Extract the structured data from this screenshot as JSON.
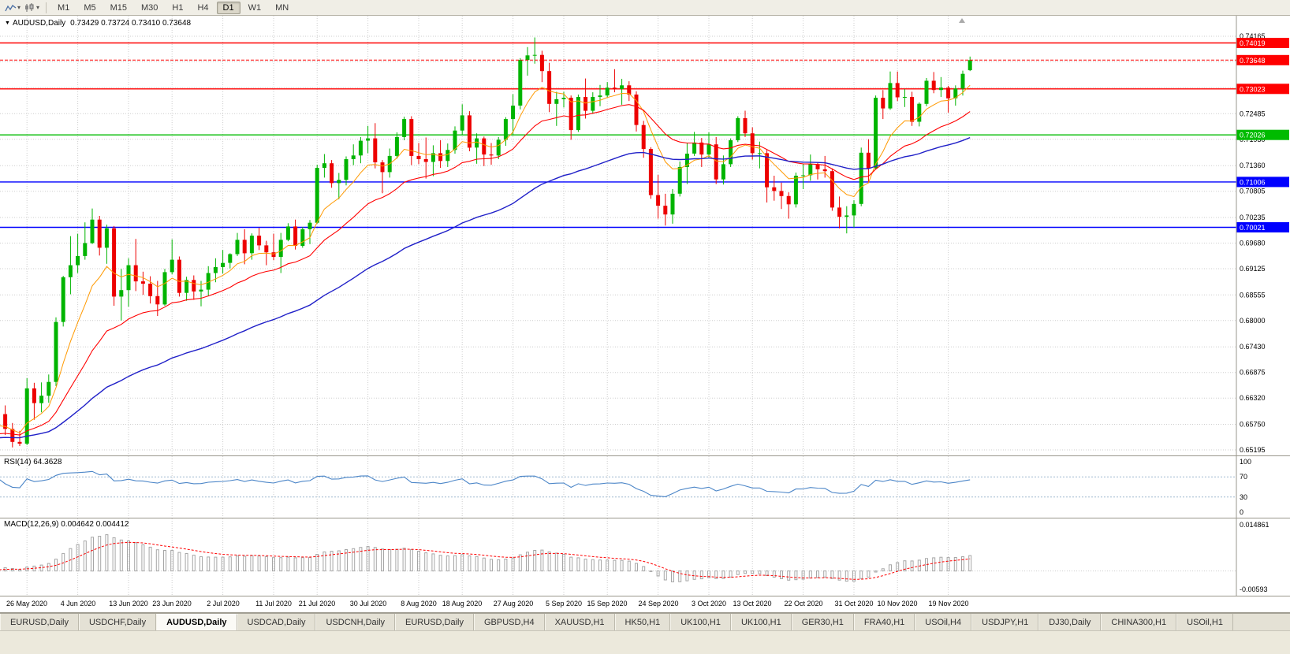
{
  "toolbar": {
    "timeframes": [
      {
        "label": "M1"
      },
      {
        "label": "M5"
      },
      {
        "label": "M15"
      },
      {
        "label": "M30"
      },
      {
        "label": "H1"
      },
      {
        "label": "H4"
      },
      {
        "label": "D1",
        "active": true
      },
      {
        "label": "W1"
      },
      {
        "label": "MN"
      }
    ]
  },
  "header": {
    "symbol_text": "AUDUSD,Daily",
    "ohlc_text": "0.73429 0.73724 0.73410 0.73648"
  },
  "chart_data": {
    "type": "candlestick",
    "symbol": "AUDUSD",
    "timeframe": "Daily",
    "ohlc_display": {
      "open": "0.73429",
      "high": "0.73724",
      "low": "0.73410",
      "close": "0.73648"
    },
    "up_color": "#00B400",
    "down_color": "#ED0000",
    "y_axis": {
      "max": 0.74165,
      "min": 0.65195,
      "grid": [
        {
          "p": 0.74165,
          "label": "0.74165"
        },
        {
          "p": 0.7361
        },
        {
          "p": 0.7305
        },
        {
          "p": 0.72485,
          "label": "0.72485"
        },
        {
          "p": 0.7193,
          "label": "0.71930"
        },
        {
          "p": 0.7136,
          "label": "0.71360"
        },
        {
          "p": 0.70805,
          "label": "0.70805"
        },
        {
          "p": 0.70235,
          "label": "0.70235"
        },
        {
          "p": 0.6968,
          "label": "0.69680"
        },
        {
          "p": 0.69125,
          "label": "0.69125"
        },
        {
          "p": 0.68555,
          "label": "0.68555"
        },
        {
          "p": 0.68,
          "label": "0.68000"
        },
        {
          "p": 0.6743,
          "label": "0.67430"
        },
        {
          "p": 0.66875,
          "label": "0.66875"
        },
        {
          "p": 0.6632,
          "label": "0.66320"
        },
        {
          "p": 0.6575,
          "label": "0.65750"
        },
        {
          "p": 0.65195,
          "label": "0.65195"
        }
      ]
    },
    "x_ticks": [
      {
        "label": "26 May 2020",
        "index": 6
      },
      {
        "label": "4 Jun 2020",
        "index": 13
      },
      {
        "label": "13 Jun 2020",
        "index": 20
      },
      {
        "label": "23 Jun 2020",
        "index": 26
      },
      {
        "label": "2 Jul 2020",
        "index": 33
      },
      {
        "label": "11 Jul 2020",
        "index": 40
      },
      {
        "label": "21 Jul 2020",
        "index": 46
      },
      {
        "label": "30 Jul 2020",
        "index": 53
      },
      {
        "label": "8 Aug 2020",
        "index": 60
      },
      {
        "label": "18 Aug 2020",
        "index": 66
      },
      {
        "label": "27 Aug 2020",
        "index": 73
      },
      {
        "label": "5 Sep 2020",
        "index": 80
      },
      {
        "label": "15 Sep 2020",
        "index": 86
      },
      {
        "label": "24 Sep 2020",
        "index": 93
      },
      {
        "label": "3 Oct 2020",
        "index": 100
      },
      {
        "label": "13 Oct 2020",
        "index": 106
      },
      {
        "label": "22 Oct 2020",
        "index": 113
      },
      {
        "label": "31 Oct 2020",
        "index": 120
      },
      {
        "label": "10 Nov 2020",
        "index": 126
      },
      {
        "label": "19 Nov 2020",
        "index": 133
      }
    ],
    "hlines": [
      {
        "price": 0.74019,
        "label": "0.74019",
        "color": "#FF0000"
      },
      {
        "price": 0.73023,
        "label": "0.73023",
        "color": "#FF0000"
      },
      {
        "price": 0.72026,
        "label": "0.72026",
        "color": "#00BB00"
      },
      {
        "price": 0.71006,
        "label": "0.71006",
        "color": "#0000FF"
      },
      {
        "price": 0.70021,
        "label": "0.70021",
        "color": "#0000FF"
      }
    ],
    "current_price": {
      "value": 0.73648,
      "label": "0.73648",
      "color": "#FF0000"
    },
    "moving_averages": [
      {
        "period": 8,
        "color": "#FF9900",
        "width": 1
      },
      {
        "period": 21,
        "color": "#FF0000",
        "width": 1.1
      },
      {
        "period": 55,
        "color": "#2020C8",
        "width": 1.4
      }
    ],
    "candles": [
      [
        0.653,
        0.6548,
        0.6524,
        0.654
      ],
      [
        0.654,
        0.6665,
        0.6532,
        0.6652
      ],
      [
        0.6652,
        0.667,
        0.6583,
        0.6597
      ],
      [
        0.6597,
        0.6616,
        0.6552,
        0.6565
      ],
      [
        0.6565,
        0.6578,
        0.6525,
        0.6537
      ],
      [
        0.6537,
        0.6561,
        0.6528,
        0.6533
      ],
      [
        0.6533,
        0.6675,
        0.653,
        0.6653
      ],
      [
        0.6653,
        0.6665,
        0.6585,
        0.6621
      ],
      [
        0.6621,
        0.6666,
        0.6601,
        0.6637
      ],
      [
        0.6637,
        0.6683,
        0.6622,
        0.6667
      ],
      [
        0.6667,
        0.6807,
        0.6658,
        0.6797
      ],
      [
        0.6797,
        0.6897,
        0.6787,
        0.6894
      ],
      [
        0.6894,
        0.6983,
        0.6857,
        0.692
      ],
      [
        0.692,
        0.6988,
        0.6903,
        0.694
      ],
      [
        0.694,
        0.7013,
        0.6932,
        0.6968
      ],
      [
        0.6968,
        0.7043,
        0.6966,
        0.7019
      ],
      [
        0.7019,
        0.7027,
        0.6941,
        0.6958
      ],
      [
        0.6958,
        0.7008,
        0.6923,
        0.7
      ],
      [
        0.7,
        0.7005,
        0.6832,
        0.6852
      ],
      [
        0.6852,
        0.6912,
        0.68,
        0.6866
      ],
      [
        0.6866,
        0.6935,
        0.683,
        0.692
      ],
      [
        0.692,
        0.6977,
        0.6864,
        0.6885
      ],
      [
        0.6885,
        0.6906,
        0.6856,
        0.688
      ],
      [
        0.688,
        0.6896,
        0.6837,
        0.6853
      ],
      [
        0.6853,
        0.6886,
        0.681,
        0.6835
      ],
      [
        0.6835,
        0.6912,
        0.6832,
        0.6905
      ],
      [
        0.6905,
        0.6976,
        0.69,
        0.6932
      ],
      [
        0.6932,
        0.6939,
        0.6852,
        0.686
      ],
      [
        0.686,
        0.6895,
        0.6843,
        0.6888
      ],
      [
        0.6888,
        0.6898,
        0.6845,
        0.6863
      ],
      [
        0.6863,
        0.6886,
        0.6831,
        0.6867
      ],
      [
        0.6867,
        0.6918,
        0.6853,
        0.6903
      ],
      [
        0.6903,
        0.6935,
        0.6883,
        0.6916
      ],
      [
        0.6916,
        0.6953,
        0.6902,
        0.6925
      ],
      [
        0.6925,
        0.6946,
        0.6913,
        0.6944
      ],
      [
        0.6944,
        0.699,
        0.694,
        0.6975
      ],
      [
        0.6975,
        0.6998,
        0.6922,
        0.6946
      ],
      [
        0.6946,
        0.6989,
        0.6932,
        0.6984
      ],
      [
        0.6984,
        0.7001,
        0.6953,
        0.6963
      ],
      [
        0.6963,
        0.6973,
        0.692,
        0.6948
      ],
      [
        0.6948,
        0.6988,
        0.6931,
        0.6938
      ],
      [
        0.6938,
        0.699,
        0.6903,
        0.6975
      ],
      [
        0.6975,
        0.7011,
        0.6972,
        0.7004
      ],
      [
        0.7004,
        0.7019,
        0.6954,
        0.6962
      ],
      [
        0.6962,
        0.7003,
        0.6958,
        0.6998
      ],
      [
        0.6998,
        0.7018,
        0.6966,
        0.7012
      ],
      [
        0.7012,
        0.7138,
        0.701,
        0.7131
      ],
      [
        0.7131,
        0.7161,
        0.711,
        0.7141
      ],
      [
        0.7141,
        0.7148,
        0.7088,
        0.7098
      ],
      [
        0.7098,
        0.712,
        0.7063,
        0.7105
      ],
      [
        0.7105,
        0.7156,
        0.7093,
        0.715
      ],
      [
        0.715,
        0.7182,
        0.7137,
        0.7158
      ],
      [
        0.7158,
        0.7198,
        0.7141,
        0.719
      ],
      [
        0.719,
        0.7222,
        0.7163,
        0.7195
      ],
      [
        0.7195,
        0.7228,
        0.713,
        0.7143
      ],
      [
        0.7143,
        0.7148,
        0.7076,
        0.7122
      ],
      [
        0.7122,
        0.7173,
        0.711,
        0.7157
      ],
      [
        0.7157,
        0.7208,
        0.7151,
        0.7198
      ],
      [
        0.7198,
        0.7242,
        0.7191,
        0.7237
      ],
      [
        0.7237,
        0.7243,
        0.7137,
        0.7157
      ],
      [
        0.7157,
        0.7185,
        0.7139,
        0.715
      ],
      [
        0.715,
        0.7197,
        0.7108,
        0.7144
      ],
      [
        0.7144,
        0.718,
        0.7113,
        0.7163
      ],
      [
        0.7163,
        0.7191,
        0.7131,
        0.7146
      ],
      [
        0.7146,
        0.7184,
        0.7133,
        0.717
      ],
      [
        0.717,
        0.7221,
        0.7162,
        0.7212
      ],
      [
        0.7212,
        0.7269,
        0.7202,
        0.7245
      ],
      [
        0.7245,
        0.7254,
        0.7167,
        0.7175
      ],
      [
        0.7175,
        0.7206,
        0.714,
        0.7195
      ],
      [
        0.7195,
        0.7199,
        0.7135,
        0.716
      ],
      [
        0.716,
        0.7185,
        0.7138,
        0.7158
      ],
      [
        0.7158,
        0.7198,
        0.715,
        0.7192
      ],
      [
        0.7192,
        0.7241,
        0.7179,
        0.7237
      ],
      [
        0.7237,
        0.7291,
        0.7201,
        0.7266
      ],
      [
        0.7266,
        0.7369,
        0.7258,
        0.7365
      ],
      [
        0.7365,
        0.7393,
        0.7331,
        0.7375
      ],
      [
        0.7375,
        0.7414,
        0.7357,
        0.7376
      ],
      [
        0.7376,
        0.7385,
        0.7317,
        0.7341
      ],
      [
        0.7341,
        0.7359,
        0.7252,
        0.727
      ],
      [
        0.727,
        0.7296,
        0.7222,
        0.728
      ],
      [
        0.728,
        0.7296,
        0.7262,
        0.7283
      ],
      [
        0.7283,
        0.7288,
        0.7192,
        0.7213
      ],
      [
        0.7213,
        0.729,
        0.7209,
        0.7285
      ],
      [
        0.7285,
        0.7325,
        0.7238,
        0.7255
      ],
      [
        0.7255,
        0.7295,
        0.7248,
        0.7285
      ],
      [
        0.7285,
        0.7311,
        0.7265,
        0.7288
      ],
      [
        0.7288,
        0.7317,
        0.7283,
        0.7305
      ],
      [
        0.7305,
        0.7345,
        0.7295,
        0.7302
      ],
      [
        0.7302,
        0.7324,
        0.7268,
        0.731
      ],
      [
        0.731,
        0.7319,
        0.7276,
        0.729
      ],
      [
        0.729,
        0.7297,
        0.721,
        0.7224
      ],
      [
        0.7224,
        0.7233,
        0.7153,
        0.7172
      ],
      [
        0.7172,
        0.7176,
        0.7064,
        0.7072
      ],
      [
        0.7072,
        0.7116,
        0.7021,
        0.7049
      ],
      [
        0.7049,
        0.7075,
        0.7006,
        0.703
      ],
      [
        0.703,
        0.7085,
        0.701,
        0.7075
      ],
      [
        0.7075,
        0.7145,
        0.7069,
        0.7133
      ],
      [
        0.7133,
        0.7185,
        0.7096,
        0.7162
      ],
      [
        0.7162,
        0.7209,
        0.7157,
        0.7186
      ],
      [
        0.7186,
        0.7196,
        0.7133,
        0.716
      ],
      [
        0.716,
        0.7208,
        0.7153,
        0.7182
      ],
      [
        0.7182,
        0.7198,
        0.7096,
        0.7106
      ],
      [
        0.7106,
        0.7158,
        0.7095,
        0.7139
      ],
      [
        0.7139,
        0.7195,
        0.7133,
        0.7191
      ],
      [
        0.7191,
        0.7243,
        0.7187,
        0.7239
      ],
      [
        0.7239,
        0.7255,
        0.7198,
        0.7206
      ],
      [
        0.7206,
        0.7219,
        0.7149,
        0.7163
      ],
      [
        0.7163,
        0.7188,
        0.713,
        0.7163
      ],
      [
        0.7163,
        0.717,
        0.7056,
        0.7089
      ],
      [
        0.7089,
        0.7114,
        0.706,
        0.7081
      ],
      [
        0.7081,
        0.7099,
        0.7042,
        0.707
      ],
      [
        0.707,
        0.7078,
        0.7021,
        0.7052
      ],
      [
        0.7052,
        0.7121,
        0.7045,
        0.7114
      ],
      [
        0.7114,
        0.714,
        0.7085,
        0.7115
      ],
      [
        0.7115,
        0.716,
        0.7103,
        0.7139
      ],
      [
        0.7139,
        0.7143,
        0.7106,
        0.7128
      ],
      [
        0.7128,
        0.7157,
        0.711,
        0.7124
      ],
      [
        0.7124,
        0.713,
        0.7038,
        0.7045
      ],
      [
        0.7045,
        0.7069,
        0.7,
        0.7025
      ],
      [
        0.7025,
        0.7048,
        0.6989,
        0.7028
      ],
      [
        0.7028,
        0.7061,
        0.7002,
        0.7053
      ],
      [
        0.7053,
        0.7175,
        0.7048,
        0.7164
      ],
      [
        0.7164,
        0.7193,
        0.7098,
        0.713
      ],
      [
        0.713,
        0.7288,
        0.7128,
        0.7283
      ],
      [
        0.7283,
        0.73,
        0.7237,
        0.726
      ],
      [
        0.726,
        0.734,
        0.7257,
        0.7315
      ],
      [
        0.7315,
        0.734,
        0.7276,
        0.7284
      ],
      [
        0.7284,
        0.7302,
        0.7263,
        0.7285
      ],
      [
        0.7285,
        0.7296,
        0.7222,
        0.7231
      ],
      [
        0.7231,
        0.7273,
        0.7221,
        0.727
      ],
      [
        0.727,
        0.7326,
        0.7265,
        0.732
      ],
      [
        0.732,
        0.7339,
        0.7293,
        0.73
      ],
      [
        0.73,
        0.7328,
        0.7285,
        0.7305
      ],
      [
        0.7305,
        0.7309,
        0.7251,
        0.7282
      ],
      [
        0.7282,
        0.731,
        0.7266,
        0.7303
      ],
      [
        0.7303,
        0.7342,
        0.7288,
        0.7335
      ],
      [
        0.73429,
        0.73724,
        0.7341,
        0.73648
      ]
    ],
    "rsi": {
      "label": "RSI(14) 64.3628",
      "period": 14,
      "value": 64.3628,
      "range": [
        0,
        100
      ],
      "levels": [
        70,
        30
      ],
      "axis_labels": [
        100,
        70,
        30,
        0
      ],
      "color": "#4C86C8",
      "level_color": "#9FB9CF"
    },
    "macd": {
      "label": "MACD(12,26,9) 0.004642 0.004412",
      "fast": 12,
      "slow": 26,
      "signal_period": 9,
      "macd_value": 0.004642,
      "signal_value": 0.004412,
      "axis_max": 0.014861,
      "axis_max_label": "0.014861",
      "axis_min": -0.00593,
      "axis_min_label": "-0.00593",
      "histogram_color": "#A6A6A6",
      "signal_color": "#FF0000"
    }
  },
  "tabs": [
    {
      "label": "EURUSD,Daily"
    },
    {
      "label": "USDCHF,Daily"
    },
    {
      "label": "AUDUSD,Daily",
      "active": true
    },
    {
      "label": "USDCAD,Daily"
    },
    {
      "label": "USDCNH,Daily"
    },
    {
      "label": "EURUSD,Daily"
    },
    {
      "label": "GBPUSD,H4"
    },
    {
      "label": "XAUUSD,H1"
    },
    {
      "label": "HK50,H1"
    },
    {
      "label": "UK100,H1"
    },
    {
      "label": "UK100,H1"
    },
    {
      "label": "GER30,H1"
    },
    {
      "label": "FRA40,H1"
    },
    {
      "label": "USOil,H4"
    },
    {
      "label": "USDJPY,H1"
    },
    {
      "label": "DJ30,Daily"
    },
    {
      "label": "CHINA300,H1"
    },
    {
      "label": "USOil,H1"
    }
  ]
}
